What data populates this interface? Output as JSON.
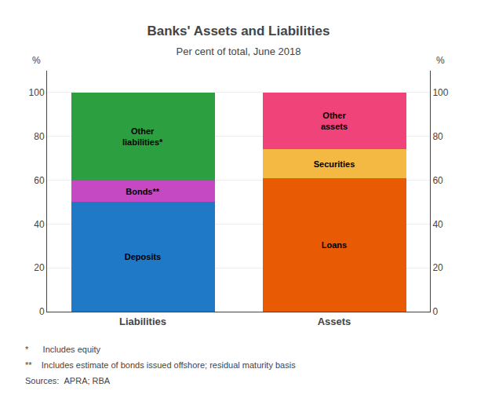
{
  "chart_data": {
    "type": "bar",
    "stacked": true,
    "title": "Banks' Assets and Liabilities",
    "subtitle": "Per cent of total, June 2018",
    "categories": [
      "Liabilities",
      "Assets"
    ],
    "series": [
      {
        "name": "Deposits",
        "color": "#2079C7",
        "values": [
          50,
          null
        ]
      },
      {
        "name": "Bonds**",
        "color": "#C449C2",
        "values": [
          10,
          null
        ]
      },
      {
        "name": "Other\nliabilities*",
        "color": "#2CA040",
        "values": [
          40,
          null
        ]
      },
      {
        "name": "Loans",
        "color": "#E85A04",
        "values": [
          null,
          61
        ]
      },
      {
        "name": "Securities",
        "color": "#F4B942",
        "values": [
          null,
          13
        ]
      },
      {
        "name": "Other\nassets",
        "color": "#F0437A",
        "values": [
          null,
          26
        ]
      }
    ],
    "ylabel": "%",
    "y2label": "%",
    "ylim": [
      0,
      110
    ],
    "yticks": [
      0,
      20,
      40,
      60,
      80,
      100
    ],
    "y2lim": [
      0,
      110
    ],
    "y2ticks": [
      0,
      20,
      40,
      60,
      80,
      100
    ],
    "grid": true,
    "footnotes": [
      "*      Includes equity",
      "**    Includes estimate of bonds issued offshore; residual maturity basis",
      "Sources:  APRA; RBA"
    ]
  }
}
